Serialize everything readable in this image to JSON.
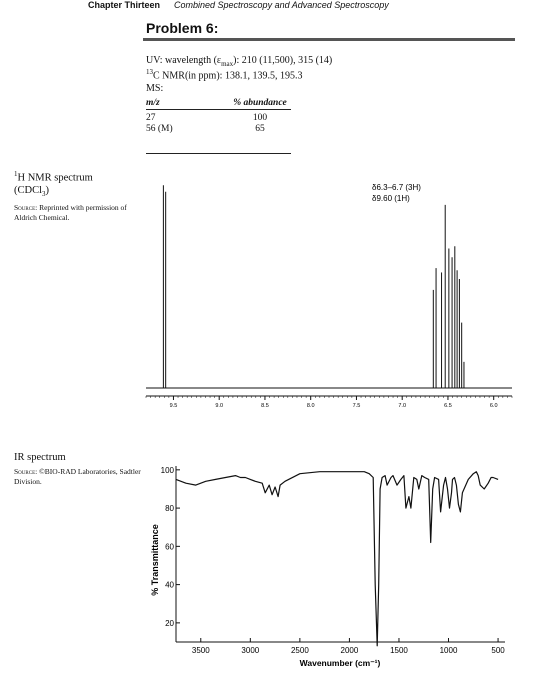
{
  "header": {
    "chapter": "Chapter Thirteen",
    "title": "Combined Spectroscopy and Advanced Spectroscopy"
  },
  "problem": {
    "title": "Problem 6:",
    "uv": {
      "label": "UV: wavelength (ε",
      "sub": "max",
      "rest": "): 210 (11,500), 315 (14)"
    },
    "c13": {
      "sup": "13",
      "text": "C NMR(in ppm): 138.1, 139.5, 195.3"
    },
    "ms": {
      "label": "MS:",
      "col_mz": "m/z",
      "col_abundance": "% abundance",
      "rows": [
        {
          "mz": "27",
          "abundance": "100"
        },
        {
          "mz": "56 (M)",
          "abundance": "65"
        }
      ]
    }
  },
  "nmr": {
    "side_sup": "1",
    "side_title": "H NMR spectrum",
    "side_solvent": "(CDCl",
    "side_solvent_sub": "3",
    "side_solvent_end": ")",
    "source": "Source: Reprinted with permission of Aldrich Chemical.",
    "source_label": "Source:",
    "source_text": "Reprinted with permission of Aldrich Chemical.",
    "annotation_1": "δ6.3–6.7 (3H)",
    "annotation_2": "δ9.60 (1H)",
    "ticks": [
      "9.5",
      "9.0",
      "8.5",
      "8.0",
      "7.5",
      "7.0",
      "6.5",
      "6.0"
    ]
  },
  "ir": {
    "side_title": "IR spectrum",
    "source_label": "Source:",
    "source_text": "©BIO-RAD Laboratories, Sadtler Division.",
    "ylabel": "% Transmittance",
    "xlabel": "Wavenumber (cm⁻¹)",
    "yticks": [
      "100",
      "80",
      "60",
      "40",
      "20"
    ],
    "xticks": [
      "3500",
      "3000",
      "2500",
      "2000",
      "1500",
      "1000",
      "500"
    ]
  },
  "chart_data": [
    {
      "type": "line",
      "title": "",
      "xlabel": "",
      "ylabel": "",
      "x_reversed": true,
      "xlim": [
        9.8,
        5.8
      ],
      "ylim": [
        0,
        1
      ],
      "xticks": [
        9.5,
        9.0,
        8.5,
        8.0,
        7.5,
        7.0,
        6.5,
        6.0
      ],
      "peaks": [
        {
          "x": 9.61,
          "h": 0.93
        },
        {
          "x": 9.585,
          "h": 0.9
        },
        {
          "x": 6.66,
          "h": 0.45
        },
        {
          "x": 6.63,
          "h": 0.55
        },
        {
          "x": 6.57,
          "h": 0.53
        },
        {
          "x": 6.53,
          "h": 0.84
        },
        {
          "x": 6.49,
          "h": 0.64
        },
        {
          "x": 6.455,
          "h": 0.6
        },
        {
          "x": 6.425,
          "h": 0.65
        },
        {
          "x": 6.4,
          "h": 0.54
        },
        {
          "x": 6.375,
          "h": 0.5
        },
        {
          "x": 6.35,
          "h": 0.3
        },
        {
          "x": 6.325,
          "h": 0.12
        }
      ],
      "annotations": [
        "δ6.3–6.7 (3H)",
        "δ9.60 (1H)"
      ]
    },
    {
      "type": "line",
      "title": "",
      "xlabel": "Wavenumber (cm⁻¹)",
      "ylabel": "% Transmittance",
      "x_reversed": true,
      "xlim": [
        3750,
        430
      ],
      "ylim": [
        10,
        102
      ],
      "xticks": [
        3500,
        3000,
        2500,
        2000,
        1500,
        1000,
        500
      ],
      "yticks": [
        20,
        40,
        60,
        80,
        100
      ],
      "x": [
        3750,
        3650,
        3550,
        3450,
        3350,
        3250,
        3150,
        3100,
        3050,
        3000,
        2950,
        2880,
        2850,
        2810,
        2780,
        2750,
        2720,
        2700,
        2650,
        2500,
        2300,
        2100,
        1950,
        1850,
        1800,
        1760,
        1740,
        1720,
        1705,
        1690,
        1670,
        1640,
        1620,
        1580,
        1560,
        1520,
        1480,
        1450,
        1430,
        1400,
        1380,
        1350,
        1320,
        1300,
        1270,
        1240,
        1200,
        1180,
        1160,
        1140,
        1100,
        1080,
        1050,
        1030,
        1010,
        990,
        970,
        960,
        940,
        920,
        900,
        880,
        860,
        800,
        750,
        720,
        700,
        680,
        640,
        600,
        570,
        550,
        500
      ],
      "y": [
        95,
        93,
        92,
        94,
        95,
        96,
        97,
        96,
        96,
        95,
        94,
        93,
        88,
        92,
        87,
        91,
        86,
        92,
        94,
        98,
        99,
        99,
        99,
        99,
        98,
        96,
        40,
        8,
        40,
        90,
        96,
        97,
        92,
        96,
        97,
        92,
        95,
        97,
        80,
        86,
        80,
        96,
        95,
        90,
        97,
        96,
        95,
        62,
        90,
        96,
        95,
        78,
        92,
        96,
        90,
        80,
        88,
        95,
        96,
        92,
        82,
        78,
        88,
        95,
        98,
        99,
        97,
        92,
        90,
        93,
        96,
        96,
        95
      ]
    }
  ]
}
